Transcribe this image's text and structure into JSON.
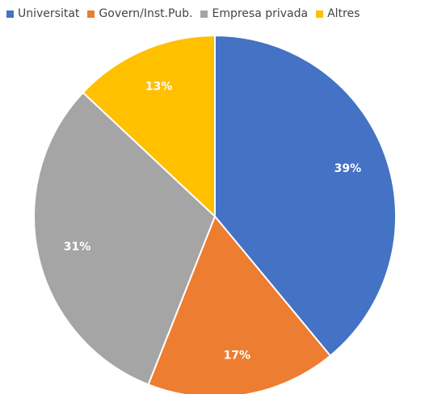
{
  "chart_data": {
    "type": "pie",
    "title": "",
    "categories": [
      "Universitat",
      "Govern/Inst.Pub.",
      "Empresa privada",
      "Altres"
    ],
    "values": [
      39,
      17,
      31,
      13
    ],
    "data_labels": [
      "39%",
      "17%",
      "31%",
      "13%"
    ],
    "colors": [
      "#4472C4",
      "#ED7D31",
      "#A5A5A5",
      "#FFC000"
    ],
    "start_angle_deg": 0,
    "direction": "clockwise",
    "legend_position": "top",
    "slice_border_color": "#FFFFFF"
  }
}
